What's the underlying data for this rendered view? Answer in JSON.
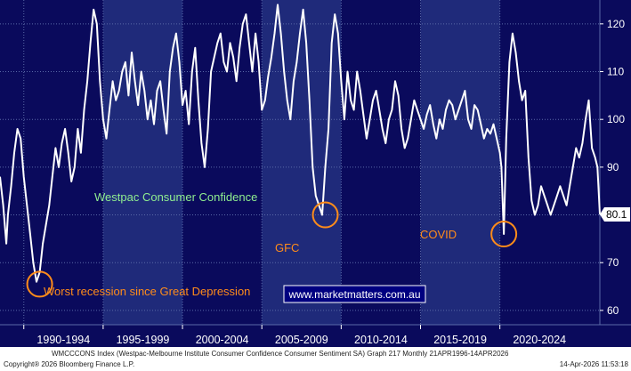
{
  "chart_data": {
    "type": "line",
    "title": "Westpac Consumer Confidence",
    "xlabel": "",
    "ylabel": "",
    "ylim": [
      57,
      125
    ],
    "xlim": [
      1988.5,
      2026.3
    ],
    "grid": true,
    "y_ticks": [
      60,
      70,
      80,
      90,
      100,
      110,
      120
    ],
    "x_tick_labels": [
      "1990-1994",
      "1995-1999",
      "2000-2004",
      "2005-2009",
      "2010-2014",
      "2015-2019",
      "2020-2024"
    ],
    "x_tick_centers": [
      1992.5,
      1997.5,
      2002.5,
      2007.5,
      2012.5,
      2017.5,
      2022.5
    ],
    "x_bands": [
      [
        1990,
        1995
      ],
      [
        1995,
        2000
      ],
      [
        2000,
        2005
      ],
      [
        2005,
        2010
      ],
      [
        2010,
        2015
      ],
      [
        2015,
        2020
      ],
      [
        2020,
        2025
      ]
    ],
    "last_value": 80.1,
    "last_value_label": "80.1",
    "series": [
      {
        "name": "WMCCCONS Index",
        "color": "#ffffff",
        "x": [
          1988.5,
          1988.7,
          1988.9,
          1989.0,
          1989.2,
          1989.4,
          1989.6,
          1989.8,
          1990.0,
          1990.2,
          1990.4,
          1990.6,
          1990.8,
          1991.0,
          1991.2,
          1991.4,
          1991.6,
          1991.8,
          1992.0,
          1992.2,
          1992.4,
          1992.6,
          1992.8,
          1993.0,
          1993.2,
          1993.4,
          1993.6,
          1993.8,
          1994.0,
          1994.2,
          1994.4,
          1994.6,
          1994.8,
          1995.0,
          1995.2,
          1995.4,
          1995.6,
          1995.8,
          1996.0,
          1996.2,
          1996.4,
          1996.6,
          1996.8,
          1997.0,
          1997.2,
          1997.4,
          1997.6,
          1997.8,
          1998.0,
          1998.2,
          1998.4,
          1998.6,
          1998.8,
          1999.0,
          1999.2,
          1999.4,
          1999.6,
          1999.8,
          2000.0,
          2000.2,
          2000.4,
          2000.6,
          2000.8,
          2001.0,
          2001.2,
          2001.4,
          2001.6,
          2001.8,
          2002.0,
          2002.2,
          2002.4,
          2002.6,
          2002.8,
          2003.0,
          2003.2,
          2003.4,
          2003.6,
          2003.8,
          2004.0,
          2004.2,
          2004.4,
          2004.6,
          2004.8,
          2005.0,
          2005.2,
          2005.4,
          2005.6,
          2005.8,
          2006.0,
          2006.2,
          2006.4,
          2006.6,
          2006.8,
          2007.0,
          2007.2,
          2007.4,
          2007.6,
          2007.8,
          2008.0,
          2008.2,
          2008.4,
          2008.6,
          2008.8,
          2009.0,
          2009.2,
          2009.4,
          2009.6,
          2009.8,
          2010.0,
          2010.2,
          2010.4,
          2010.6,
          2010.8,
          2011.0,
          2011.2,
          2011.4,
          2011.6,
          2011.8,
          2012.0,
          2012.2,
          2012.4,
          2012.6,
          2012.8,
          2013.0,
          2013.2,
          2013.4,
          2013.6,
          2013.8,
          2014.0,
          2014.2,
          2014.4,
          2014.6,
          2014.8,
          2015.0,
          2015.2,
          2015.4,
          2015.6,
          2015.8,
          2016.0,
          2016.2,
          2016.4,
          2016.6,
          2016.8,
          2017.0,
          2017.2,
          2017.4,
          2017.6,
          2017.8,
          2018.0,
          2018.2,
          2018.4,
          2018.6,
          2018.8,
          2019.0,
          2019.2,
          2019.4,
          2019.6,
          2019.8,
          2020.0,
          2020.1,
          2020.25,
          2020.4,
          2020.6,
          2020.8,
          2021.0,
          2021.2,
          2021.4,
          2021.6,
          2021.8,
          2022.0,
          2022.2,
          2022.4,
          2022.6,
          2022.8,
          2023.0,
          2023.2,
          2023.4,
          2023.6,
          2023.8,
          2024.0,
          2024.2,
          2024.4,
          2024.6,
          2024.8,
          2025.0,
          2025.2,
          2025.4,
          2025.6,
          2025.8,
          2026.0,
          2026.15,
          2026.3
        ],
        "values": [
          88,
          82,
          74,
          80,
          86,
          93,
          98,
          96,
          88,
          82,
          76,
          70,
          66,
          68,
          74,
          78,
          82,
          88,
          94,
          90,
          95,
          98,
          93,
          87,
          90,
          98,
          93,
          102,
          108,
          116,
          123,
          120,
          108,
          100,
          96,
          102,
          108,
          104,
          106,
          110,
          112,
          105,
          114,
          108,
          103,
          110,
          106,
          100,
          104,
          99,
          106,
          108,
          102,
          97,
          110,
          115,
          118,
          112,
          103,
          106,
          99,
          110,
          115,
          104,
          95,
          90,
          98,
          110,
          113,
          116,
          118,
          112,
          110,
          116,
          113,
          108,
          115,
          120,
          122,
          116,
          110,
          118,
          112,
          102,
          104,
          109,
          113,
          118,
          124,
          118,
          110,
          104,
          100,
          108,
          112,
          118,
          123,
          116,
          104,
          90,
          84,
          82,
          80,
          90,
          98,
          116,
          122,
          118,
          108,
          100,
          110,
          104,
          102,
          110,
          106,
          101,
          96,
          100,
          104,
          106,
          102,
          98,
          95,
          100,
          102,
          108,
          105,
          98,
          94,
          96,
          100,
          104,
          102,
          100,
          98,
          101,
          103,
          99,
          96,
          100,
          98,
          102,
          104,
          103,
          100,
          102,
          104,
          106,
          100,
          98,
          103,
          102,
          99,
          96,
          98,
          97,
          99,
          96,
          93,
          90,
          76,
          96,
          112,
          118,
          114,
          108,
          104,
          106,
          92,
          83,
          80,
          82,
          86,
          84,
          82,
          80,
          82,
          84,
          86,
          84,
          82,
          86,
          90,
          94,
          92,
          95,
          100,
          104,
          94,
          92,
          90,
          80.1
        ]
      }
    ],
    "annotations": [
      {
        "text": "Westpac Consumer Confidence",
        "color": "#90ee90"
      },
      {
        "text": "Worst recession since Great Depression",
        "color": "#ff8c1a",
        "circle_x": 1991.0,
        "circle_y": 65.5
      },
      {
        "text": "GFC",
        "color": "#ff8c1a",
        "circle_x": 2009.0,
        "circle_y": 80
      },
      {
        "text": "COVID",
        "color": "#ff8c1a",
        "circle_x": 2020.25,
        "circle_y": 76
      }
    ],
    "watermark": "www.marketmatters.com.au"
  },
  "footer": {
    "line1": "WMCCCONS Index (Westpac-Melbourne Institute Consumer Confidence Consumer Sentiment SA) Graph 217 Monthly 21APR1996-14APR2026",
    "copyright": "Copyright® 2026 Bloomberg Finance L.P.",
    "timestamp": "14-Apr-2026 11:53:18"
  },
  "colors": {
    "background": "#0a0a5c",
    "band": "#1f2a7a",
    "grid": "#5a6aa8",
    "line": "#ffffff",
    "annotation_orange": "#ff8c1a",
    "label_green": "#90ee90"
  }
}
